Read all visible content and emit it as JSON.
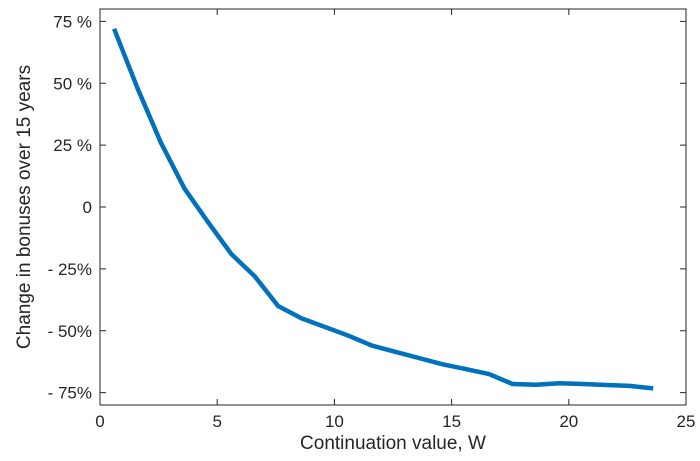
{
  "chart_data": {
    "type": "line",
    "title": "",
    "xlabel": "Continuation value, W",
    "ylabel": "Change in bonuses over 15 years",
    "xlim": [
      0,
      25
    ],
    "ylim": [
      -80,
      80
    ],
    "xticks": [
      0,
      5,
      10,
      15,
      20,
      25
    ],
    "xtick_labels": [
      "0",
      "5",
      "10",
      "15",
      "20",
      "25"
    ],
    "yticks": [
      75,
      50,
      25,
      0,
      -25,
      -50,
      -75
    ],
    "ytick_labels": [
      "75 %",
      "50 %",
      "25 %",
      "0",
      "- 25%",
      "- 50%",
      "- 75%"
    ],
    "grid": false,
    "line_color": "#0072BD",
    "series": [
      {
        "x": [
          0.6,
          1.6,
          2.6,
          3.6,
          4.6,
          5.6,
          6.6,
          7.6,
          8.6,
          9.6,
          10.6,
          11.6,
          12.6,
          13.6,
          14.6,
          15.6,
          16.6,
          17.6,
          18.6,
          19.6,
          20.6,
          21.6,
          22.6,
          23.6
        ],
        "values": [
          72,
          48,
          26,
          7.5,
          -6,
          -19,
          -28,
          -40,
          -45,
          -48.5,
          -52,
          -56,
          -58.5,
          -61,
          -63.5,
          -65.5,
          -67.5,
          -71.5,
          -71.8,
          -71.2,
          -71.5,
          -71.9,
          -72.3,
          -73.3
        ]
      }
    ]
  }
}
